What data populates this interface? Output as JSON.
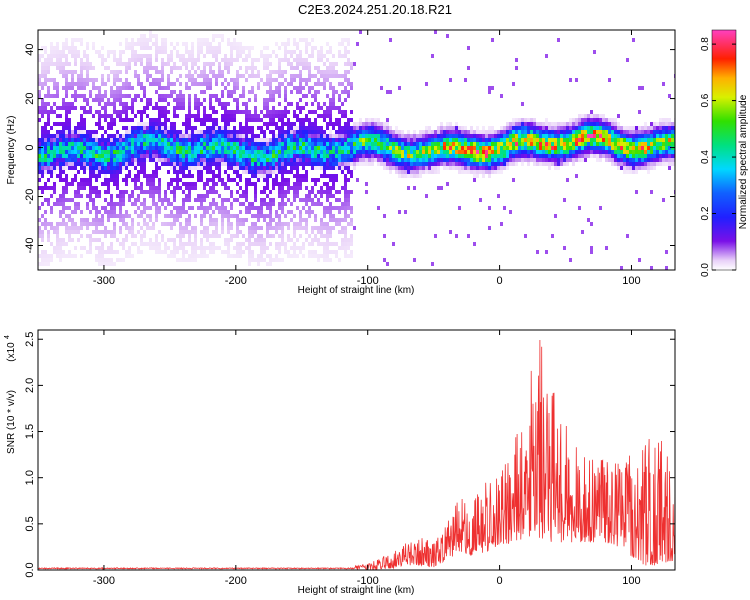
{
  "figure_title": "C2E3.2024.251.20.18.R21",
  "colors": {
    "snr_line": "#ee3030",
    "frame": "#000000"
  },
  "chart_data": [
    {
      "type": "heatmap",
      "title": "C2E3.2024.251.20.18.R21",
      "xlabel": "Height of straight line (km)",
      "ylabel": "Frequency (Hz)",
      "xlim": [
        -350,
        133
      ],
      "ylim": [
        -50,
        48
      ],
      "xticks": [
        -300,
        -200,
        -100,
        0,
        100
      ],
      "yticks": [
        -40,
        -20,
        0,
        20,
        40
      ],
      "colorbar": {
        "label": "Normalized spectral amplitude",
        "range": [
          0.0,
          0.85
        ],
        "ticks": [
          "0.0",
          "0.2",
          "0.4",
          "0.6",
          "0.8"
        ],
        "colormap": "rainbow (violet-blue-cyan-green-yellow-red-magenta)"
      },
      "description_points": [
        {
          "x": -350,
          "center_freq": 0,
          "spread": 48,
          "max_amp": 0.45
        },
        {
          "x": -120,
          "center_freq": 0,
          "spread": 48,
          "max_amp": 0.45
        },
        {
          "x": -110,
          "center_freq": 0,
          "spread": 12,
          "max_amp": 0.5
        },
        {
          "x": -50,
          "center_freq": 0,
          "spread": 10,
          "max_amp": 0.6
        },
        {
          "x": -20,
          "center_freq": 2,
          "spread": 8,
          "max_amp": 0.8
        },
        {
          "x": 0,
          "center_freq": 0,
          "spread": 8,
          "max_amp": 0.75
        },
        {
          "x": 40,
          "center_freq": 2,
          "spread": 10,
          "max_amp": 0.7
        },
        {
          "x": 80,
          "center_freq": 4,
          "spread": 10,
          "max_amp": 0.75
        },
        {
          "x": 133,
          "center_freq": 2,
          "spread": 10,
          "max_amp": 0.6
        }
      ]
    },
    {
      "type": "line",
      "xlabel": "Height of straight line (km)",
      "ylabel": "SNR (10 * v/v)",
      "yscale_note": "(x10",
      "yscale_exp": "4",
      "xlim": [
        -350,
        133
      ],
      "ylim": [
        0,
        2.6
      ],
      "xticks": [
        -300,
        -200,
        -100,
        0,
        100
      ],
      "yticks": [
        "0.0",
        "0.5",
        "1.0",
        "1.5",
        "2.0",
        "2.5"
      ],
      "envelope": {
        "x": [
          -350,
          -120,
          -100,
          -80,
          -70,
          -60,
          -50,
          -40,
          -30,
          -20,
          -10,
          0,
          10,
          20,
          30,
          40,
          50,
          60,
          70,
          80,
          90,
          100,
          110,
          120,
          133
        ],
        "y": [
          0.02,
          0.02,
          0.07,
          0.2,
          0.3,
          0.35,
          0.3,
          0.5,
          0.8,
          0.75,
          1.0,
          1.1,
          1.4,
          1.9,
          2.6,
          2.1,
          1.6,
          1.4,
          1.2,
          1.2,
          1.2,
          1.25,
          1.4,
          1.5,
          1.15
        ],
        "base": [
          0.0,
          0.0,
          0.0,
          0.02,
          0.05,
          0.05,
          0.03,
          0.1,
          0.2,
          0.15,
          0.2,
          0.25,
          0.3,
          0.35,
          0.35,
          0.3,
          0.3,
          0.3,
          0.3,
          0.3,
          0.25,
          0.15,
          0.05,
          0.05,
          0.1
        ]
      }
    }
  ]
}
